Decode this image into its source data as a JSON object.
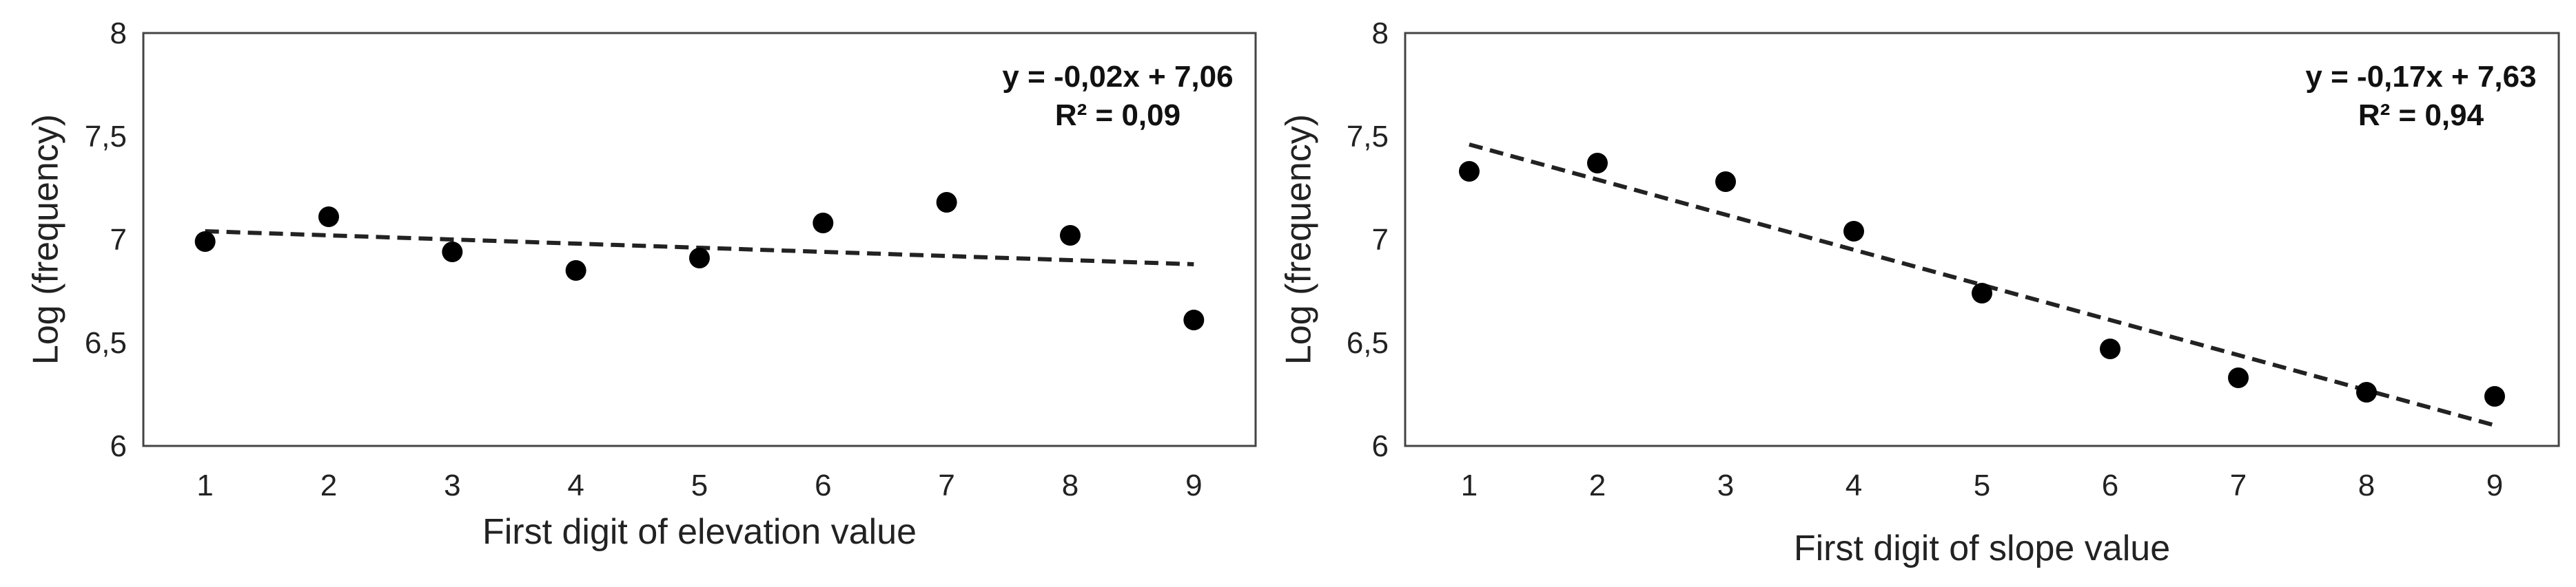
{
  "colors": {
    "point": "#000000",
    "trendline": "#222222",
    "frame": "#444444",
    "background": "#ffffff"
  },
  "chart_data": [
    {
      "type": "scatter",
      "xlabel": "First digit of elevation value",
      "ylabel": "Log (frequency)",
      "x": [
        1,
        2,
        3,
        4,
        5,
        6,
        7,
        8,
        9
      ],
      "y": [
        6.99,
        7.11,
        6.94,
        6.85,
        6.91,
        7.08,
        7.18,
        7.02,
        6.61
      ],
      "xticks": [
        "1",
        "2",
        "3",
        "4",
        "5",
        "6",
        "7",
        "8",
        "9"
      ],
      "yticks": [
        "6",
        "6,5",
        "7",
        "7,5",
        "8"
      ],
      "ylim": [
        6,
        8
      ],
      "xlim": [
        0.5,
        9.5
      ],
      "grid": false,
      "trendline": {
        "style": "dashed",
        "slope": -0.02,
        "intercept": 7.06
      },
      "annotations": [
        "y = -0,02x + 7,06",
        "R² = 0,09"
      ]
    },
    {
      "type": "scatter",
      "xlabel": "First digit of slope value",
      "ylabel": "Log (frequency)",
      "x": [
        1,
        2,
        3,
        4,
        5,
        6,
        7,
        8,
        9
      ],
      "y": [
        7.33,
        7.37,
        7.28,
        7.04,
        6.74,
        6.47,
        6.33,
        6.26,
        6.24
      ],
      "xticks": [
        "1",
        "2",
        "3",
        "4",
        "5",
        "6",
        "7",
        "8",
        "9"
      ],
      "yticks": [
        "6",
        "6,5",
        "7",
        "7,5",
        "8"
      ],
      "ylim": [
        6,
        8
      ],
      "xlim": [
        0.5,
        9.5
      ],
      "grid": false,
      "trendline": {
        "style": "dashed",
        "slope": -0.17,
        "intercept": 7.63
      },
      "annotations": [
        "y = -0,17x + 7,63",
        "R² = 0,94"
      ]
    }
  ]
}
